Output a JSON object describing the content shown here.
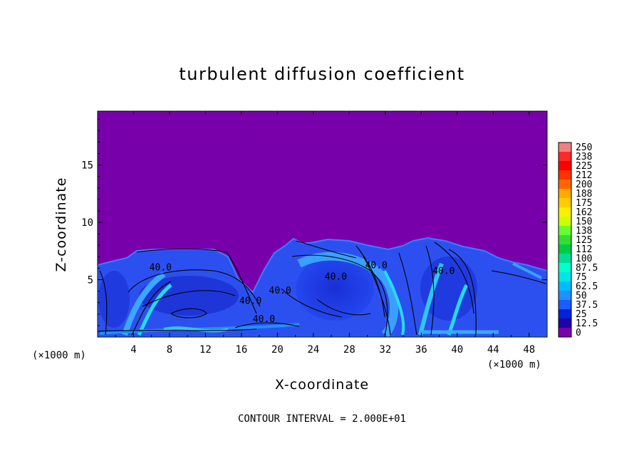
{
  "chart_data": {
    "type": "heatmap",
    "title": "turbulent diffusion coefficient",
    "xlabel": "X-coordinate",
    "ylabel": "Z-coordinate",
    "x_unit_left": "(×1000 m)",
    "x_unit_right": "(×1000 m)",
    "xlim": [
      0,
      50
    ],
    "ylim": [
      0,
      19.7
    ],
    "x_ticks": [
      4,
      8,
      12,
      16,
      20,
      24,
      28,
      32,
      36,
      40,
      44,
      48
    ],
    "y_ticks": [
      5,
      10,
      15
    ],
    "colorbar": {
      "levels": [
        "250",
        "238",
        "225",
        "212",
        "200",
        "188",
        "175",
        "162",
        "150",
        "138",
        "125",
        "112",
        "100",
        "87.5",
        "75",
        "62.5",
        "50",
        "37.5",
        "25",
        "12.5",
        "0"
      ],
      "colors": [
        "#f08080",
        "#ff2a2a",
        "#ff0000",
        "#ff3300",
        "#ff6600",
        "#ffaa00",
        "#ffcc00",
        "#ffee00",
        "#ccff00",
        "#66ff33",
        "#33dd33",
        "#00cc44",
        "#00dd99",
        "#00ffcc",
        "#00e6e6",
        "#00bbff",
        "#1e90ff",
        "#1a5cff",
        "#0022dd",
        "#2200aa",
        "#7a00aa"
      ]
    },
    "contour_labels": [
      {
        "text": "40.0",
        "x": 7.0,
        "z": 5.8
      },
      {
        "text": "40.0",
        "x": 20.3,
        "z": 3.8
      },
      {
        "text": "40.0",
        "x": 17.0,
        "z": 2.9
      },
      {
        "text": "40.0",
        "x": 18.5,
        "z": 1.3
      },
      {
        "text": "40.0",
        "x": 26.5,
        "z": 5.0
      },
      {
        "text": "40.0",
        "x": 31.0,
        "z": 6.0
      },
      {
        "text": "40.0",
        "x": 38.5,
        "z": 5.5
      }
    ],
    "contour_interval": "CONTOUR INTERVAL = 2.000E+01"
  }
}
